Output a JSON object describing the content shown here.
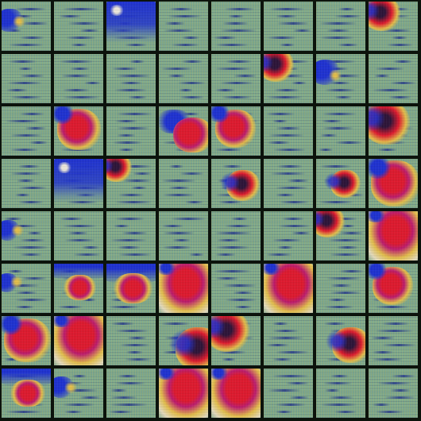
{
  "grid": {
    "rows": 8,
    "cols": 8
  },
  "palette": {
    "background": "#0c130c",
    "tile_base": "#7fae8f",
    "blue": "#1b2fd6",
    "dark": "#2a1036",
    "red": "#e3162b",
    "magenta": "#c0186e",
    "yellow": "#e8c24a",
    "cream": "#e8dfc0"
  },
  "tiles": [
    {
      "r": 0,
      "c": 0,
      "type": "blue-corner",
      "s": 0.35
    },
    {
      "r": 0,
      "c": 1,
      "type": "stripe",
      "s": 0
    },
    {
      "r": 0,
      "c": 2,
      "type": "blue-panel",
      "s": 0.8
    },
    {
      "r": 0,
      "c": 3,
      "type": "stripe",
      "s": 0
    },
    {
      "r": 0,
      "c": 4,
      "type": "stripe",
      "s": 0
    },
    {
      "r": 0,
      "c": 5,
      "type": "stripe",
      "s": 0
    },
    {
      "r": 0,
      "c": 6,
      "type": "stripe",
      "s": 0.1
    },
    {
      "r": 0,
      "c": 7,
      "type": "dark-red-corner",
      "s": 0.55
    },
    {
      "r": 1,
      "c": 0,
      "type": "stripe",
      "s": 0
    },
    {
      "r": 1,
      "c": 1,
      "type": "stripe",
      "s": 0
    },
    {
      "r": 1,
      "c": 2,
      "type": "stripe",
      "s": 0.15
    },
    {
      "r": 1,
      "c": 3,
      "type": "stripe",
      "s": 0
    },
    {
      "r": 1,
      "c": 4,
      "type": "stripe",
      "s": 0
    },
    {
      "r": 1,
      "c": 5,
      "type": "dark-red-corner",
      "s": 0.5
    },
    {
      "r": 1,
      "c": 6,
      "type": "blue-corner",
      "s": 0.45
    },
    {
      "r": 1,
      "c": 7,
      "type": "stripe",
      "s": 0
    },
    {
      "r": 2,
      "c": 0,
      "type": "stripe",
      "s": 0.1
    },
    {
      "r": 2,
      "c": 1,
      "type": "red-blob",
      "s": 0.7
    },
    {
      "r": 2,
      "c": 2,
      "type": "stripe",
      "s": 0
    },
    {
      "r": 2,
      "c": 3,
      "type": "blue-red-low",
      "s": 0.9
    },
    {
      "r": 2,
      "c": 4,
      "type": "red-blob",
      "s": 0.55
    },
    {
      "r": 2,
      "c": 5,
      "type": "stripe",
      "s": 0
    },
    {
      "r": 2,
      "c": 6,
      "type": "stripe",
      "s": 0.05
    },
    {
      "r": 2,
      "c": 7,
      "type": "dark-red-corner",
      "s": 0.85
    },
    {
      "r": 3,
      "c": 0,
      "type": "stripe",
      "s": 0.1
    },
    {
      "r": 3,
      "c": 1,
      "type": "blue-panel",
      "s": 0.9
    },
    {
      "r": 3,
      "c": 2,
      "type": "dark-red-corner",
      "s": 0.35
    },
    {
      "r": 3,
      "c": 3,
      "type": "stripe",
      "s": 0
    },
    {
      "r": 3,
      "c": 4,
      "type": "dark-red-mid",
      "s": 0.45
    },
    {
      "r": 3,
      "c": 5,
      "type": "stripe",
      "s": 0
    },
    {
      "r": 3,
      "c": 6,
      "type": "dark-red-mid",
      "s": 0.35
    },
    {
      "r": 3,
      "c": 7,
      "type": "red-blob",
      "s": 0.9
    },
    {
      "r": 4,
      "c": 0,
      "type": "blue-corner",
      "s": 0.25
    },
    {
      "r": 4,
      "c": 1,
      "type": "stripe",
      "s": 0
    },
    {
      "r": 4,
      "c": 2,
      "type": "stripe",
      "s": 0
    },
    {
      "r": 4,
      "c": 3,
      "type": "stripe",
      "s": 0
    },
    {
      "r": 4,
      "c": 4,
      "type": "stripe",
      "s": 0
    },
    {
      "r": 4,
      "c": 5,
      "type": "stripe",
      "s": 0
    },
    {
      "r": 4,
      "c": 6,
      "type": "dark-red-corner",
      "s": 0.45
    },
    {
      "r": 4,
      "c": 7,
      "type": "red-yellow-full",
      "s": 1.0
    },
    {
      "r": 5,
      "c": 0,
      "type": "blue-corner",
      "s": 0.2
    },
    {
      "r": 5,
      "c": 1,
      "type": "blue-red-top",
      "s": 0.45
    },
    {
      "r": 5,
      "c": 2,
      "type": "blue-red-top",
      "s": 0.7
    },
    {
      "r": 5,
      "c": 3,
      "type": "red-yellow-full",
      "s": 1.0
    },
    {
      "r": 5,
      "c": 4,
      "type": "stripe",
      "s": 0
    },
    {
      "r": 5,
      "c": 5,
      "type": "red-yellow-full",
      "s": 0.9
    },
    {
      "r": 5,
      "c": 6,
      "type": "stripe",
      "s": 0.05
    },
    {
      "r": 5,
      "c": 7,
      "type": "red-blob",
      "s": 0.55
    },
    {
      "r": 6,
      "c": 0,
      "type": "red-blob",
      "s": 0.8
    },
    {
      "r": 6,
      "c": 1,
      "type": "red-yellow-full",
      "s": 1.0
    },
    {
      "r": 6,
      "c": 2,
      "type": "stripe",
      "s": 0.05
    },
    {
      "r": 6,
      "c": 3,
      "type": "dark-red-mid",
      "s": 0.85
    },
    {
      "r": 6,
      "c": 4,
      "type": "dark-red-corner",
      "s": 0.75
    },
    {
      "r": 6,
      "c": 5,
      "type": "stripe",
      "s": 0.05
    },
    {
      "r": 6,
      "c": 6,
      "type": "dark-red-mid",
      "s": 0.6
    },
    {
      "r": 6,
      "c": 7,
      "type": "stripe",
      "s": 0.1
    },
    {
      "r": 7,
      "c": 0,
      "type": "blue-red-top",
      "s": 0.55
    },
    {
      "r": 7,
      "c": 1,
      "type": "blue-corner",
      "s": 0.3
    },
    {
      "r": 7,
      "c": 2,
      "type": "stripe",
      "s": 0
    },
    {
      "r": 7,
      "c": 3,
      "type": "red-yellow-full",
      "s": 1.0
    },
    {
      "r": 7,
      "c": 4,
      "type": "red-yellow-full",
      "s": 0.95
    },
    {
      "r": 7,
      "c": 5,
      "type": "stripe",
      "s": 0
    },
    {
      "r": 7,
      "c": 6,
      "type": "stripe",
      "s": 0
    },
    {
      "r": 7,
      "c": 7,
      "type": "stripe",
      "s": 0.05
    }
  ]
}
